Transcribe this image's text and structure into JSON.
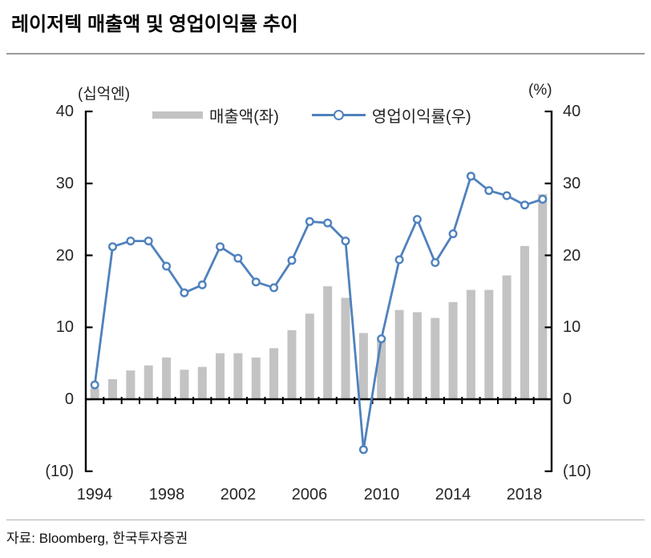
{
  "page": {
    "title": "레이저텍 매출액 및 영업이익률 추이",
    "source": "자료: Bloomberg,  한국투자증권"
  },
  "colors": {
    "bar": "#c3c3c3",
    "line": "#4f81bd",
    "axis": "#000000",
    "divider": "#9b9b9b",
    "text": "#262626"
  },
  "chart_data": {
    "type": "combo (bar + line)",
    "title": "레이저텍 매출액 및 영업이익률 추이",
    "x": [
      1994,
      1995,
      1996,
      1997,
      1998,
      1999,
      2000,
      2001,
      2002,
      2003,
      2004,
      2005,
      2006,
      2007,
      2008,
      2009,
      2010,
      2011,
      2012,
      2013,
      2014,
      2015,
      2016,
      2017,
      2018,
      2019
    ],
    "series": [
      {
        "name": "매출액(좌)",
        "type": "bar",
        "axis": "left",
        "color": "#c3c3c3",
        "values": [
          1.5,
          2.8,
          4.0,
          4.7,
          5.8,
          4.1,
          4.5,
          6.4,
          6.4,
          5.8,
          7.1,
          9.6,
          11.9,
          15.7,
          14.1,
          9.2,
          8.6,
          12.4,
          12.1,
          11.3,
          13.5,
          15.2,
          15.2,
          17.2,
          21.3,
          28.5
        ]
      },
      {
        "name": "영업이익률(우)",
        "type": "line",
        "axis": "right",
        "color": "#4f81bd",
        "marker": "circle",
        "values": [
          2.0,
          21.2,
          22.0,
          22.0,
          18.5,
          14.8,
          15.9,
          21.2,
          19.6,
          16.3,
          15.5,
          19.3,
          24.7,
          24.5,
          22.0,
          -7.0,
          8.4,
          19.4,
          25.0,
          19.0,
          23.0,
          31.0,
          29.0,
          28.3,
          27.0,
          27.8
        ]
      }
    ],
    "left_axis": {
      "unit": "(십억엔)",
      "ylim": [
        -10,
        40
      ],
      "tick_values": [
        40,
        30,
        20,
        10,
        0,
        -10
      ],
      "tick_labels": [
        "40",
        "30",
        "20",
        "10",
        "0",
        "(10)"
      ]
    },
    "right_axis": {
      "unit": "(%)",
      "ylim": [
        -10,
        40
      ],
      "tick_values": [
        40,
        30,
        20,
        10,
        0,
        -10
      ],
      "tick_labels": [
        "40",
        "30",
        "20",
        "10",
        "0",
        "(10)"
      ]
    },
    "x_axis": {
      "tick_labels": [
        "1994",
        "1998",
        "2002",
        "2006",
        "2010",
        "2014",
        "2018"
      ],
      "tick_years": [
        1994,
        1998,
        2002,
        2006,
        2010,
        2014,
        2018
      ]
    },
    "legend": {
      "position": "top",
      "entries": [
        "매출액(좌)",
        "영업이익률(우)"
      ]
    },
    "grid": false
  }
}
